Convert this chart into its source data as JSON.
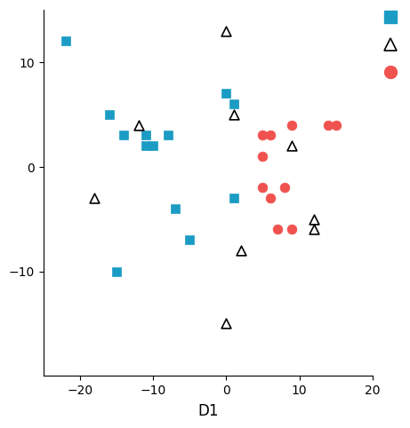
{
  "title": "",
  "xlabel": "D1",
  "xlim": [
    -25,
    20
  ],
  "ylim": [
    -20,
    15
  ],
  "xticks": [
    -20,
    -10,
    0,
    10,
    20
  ],
  "yticks": [
    -10,
    0,
    10
  ],
  "squares_x": [
    -22,
    -16,
    -14,
    -11,
    -11,
    -10,
    -8,
    -7,
    -5,
    0,
    1,
    1,
    -15
  ],
  "squares_y": [
    12,
    5,
    3,
    3,
    2,
    2,
    3,
    -4,
    -7,
    7,
    6,
    -3,
    -10
  ],
  "triangles_x": [
    -18,
    -12,
    0,
    1,
    2,
    9,
    12,
    12,
    0
  ],
  "triangles_y": [
    -3,
    4,
    13,
    5,
    -8,
    2,
    -5,
    -6,
    -15
  ],
  "circles_x": [
    5,
    5,
    5,
    6,
    6,
    7,
    8,
    9,
    9,
    14,
    15
  ],
  "circles_y": [
    3,
    1,
    -2,
    3,
    -3,
    -6,
    -2,
    4,
    -6,
    4,
    4
  ],
  "square_color": "#1B9CC4",
  "circle_color": "#F0524F",
  "triangle_color": "black",
  "marker_size": 60,
  "figsize": [
    4.74,
    4.74
  ],
  "dpi": 100
}
